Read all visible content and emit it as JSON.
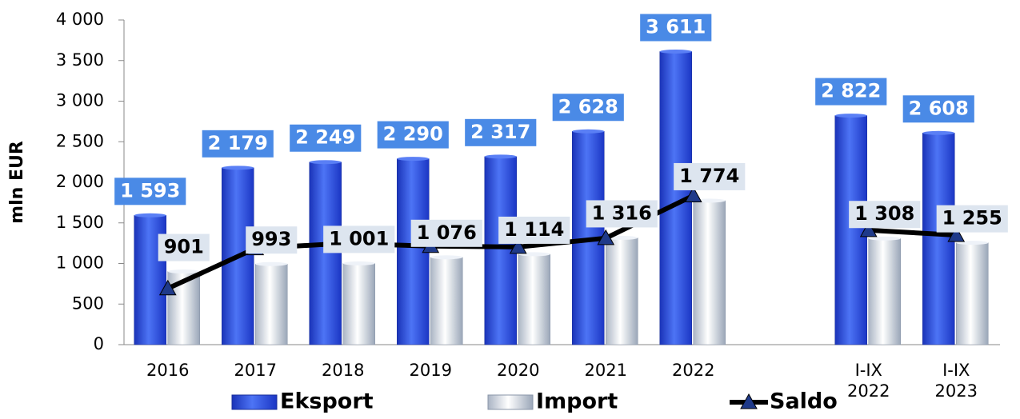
{
  "chart_data": {
    "type": "bar",
    "y_label": "mln EUR",
    "categories": [
      "2016",
      "2017",
      "2018",
      "2019",
      "2020",
      "2021",
      "2022",
      null,
      "I-IX\n2022",
      "I-IX\n2023"
    ],
    "series": [
      {
        "name": "Eksport",
        "type": "bar",
        "color": "#2a4fe0",
        "values": [
          1593,
          2179,
          2249,
          2290,
          2317,
          2628,
          3611,
          null,
          2822,
          2608
        ],
        "value_labels": [
          "1 593",
          "2 179",
          "2 249",
          "2 290",
          "2 317",
          "2 628",
          "3 611",
          null,
          "2 822",
          "2 608"
        ]
      },
      {
        "name": "Import",
        "type": "bar",
        "color": "#dfe8f3",
        "values": [
          901,
          993,
          1001,
          1076,
          1114,
          1316,
          1774,
          null,
          1308,
          1255
        ],
        "value_labels": [
          "901",
          "993",
          "1 001",
          "1 076",
          "1 114",
          "1 316",
          "1 774",
          null,
          "1 308",
          "1 255"
        ]
      },
      {
        "name": "Saldo",
        "type": "line",
        "color": "#000000",
        "values": [
          692,
          1186,
          1248,
          1214,
          1203,
          1312,
          1837,
          null,
          1410,
          1350
        ]
      }
    ],
    "ylim": [
      0,
      4000
    ],
    "yticks": [
      {
        "value": 0,
        "label": "0"
      },
      {
        "value": 500,
        "label": "500"
      },
      {
        "value": 1000,
        "label": "1 000"
      },
      {
        "value": 1500,
        "label": "1 500"
      },
      {
        "value": 2000,
        "label": "2 000"
      },
      {
        "value": 2500,
        "label": "2 500"
      },
      {
        "value": 3000,
        "label": "3 000"
      },
      {
        "value": 3500,
        "label": "3 500"
      },
      {
        "value": 4000,
        "label": "4 000"
      }
    ],
    "legend": "bottom"
  }
}
